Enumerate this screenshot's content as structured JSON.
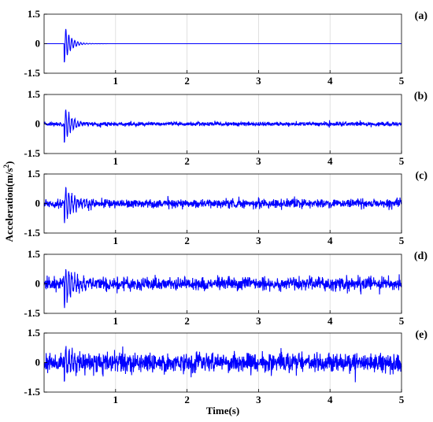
{
  "figure": {
    "ylabel_main": "Acceleration(m/s",
    "ylabel_sup": "2",
    "ylabel_close": ")",
    "xlabel": "Time(s)"
  },
  "chart_data": [
    {
      "type": "line",
      "panel_label": "(a)",
      "xlim": [
        0,
        5
      ],
      "ylim": [
        -1.5,
        1.5
      ],
      "xticks": [
        1,
        2,
        3,
        4,
        5
      ],
      "yticks": [
        -1.5,
        0,
        1.5
      ],
      "xtick_labels": [
        "1",
        "2",
        "3",
        "4",
        "5"
      ],
      "ytick_labels": [
        "-1.5",
        "0",
        "1.5"
      ],
      "grid": "vertical",
      "line_color": "#0000ff",
      "signal": {
        "onset": 0.28,
        "amplitude": 1.0,
        "frequency": 24,
        "decay": 12,
        "noise": 0.0
      }
    },
    {
      "type": "line",
      "panel_label": "(b)",
      "xlim": [
        0,
        5
      ],
      "ylim": [
        -1.5,
        1.5
      ],
      "xticks": [
        1,
        2,
        3,
        4,
        5
      ],
      "yticks": [
        -1.5,
        0,
        1.5
      ],
      "xtick_labels": [
        "1",
        "2",
        "3",
        "4",
        "5"
      ],
      "ytick_labels": [
        "-1.5",
        "0",
        "1.5"
      ],
      "grid": "vertical",
      "line_color": "#0000ff",
      "signal": {
        "onset": 0.28,
        "amplitude": 1.0,
        "frequency": 24,
        "decay": 10,
        "noise": 0.05
      }
    },
    {
      "type": "line",
      "panel_label": "(c)",
      "xlim": [
        0,
        5
      ],
      "ylim": [
        -1.5,
        1.5
      ],
      "xticks": [
        1,
        2,
        3,
        4,
        5
      ],
      "yticks": [
        -1.5,
        0,
        1.5
      ],
      "xtick_labels": [
        "1",
        "2",
        "3",
        "4",
        "5"
      ],
      "ytick_labels": [
        "-1.5",
        "0",
        "1.5"
      ],
      "grid": "vertical",
      "line_color": "#0000ff",
      "signal": {
        "onset": 0.28,
        "amplitude": 1.0,
        "frequency": 24,
        "decay": 8,
        "noise": 0.11
      }
    },
    {
      "type": "line",
      "panel_label": "(d)",
      "xlim": [
        0,
        5
      ],
      "ylim": [
        -1.5,
        1.5
      ],
      "xticks": [
        1,
        2,
        3,
        4,
        5
      ],
      "yticks": [
        -1.5,
        0,
        1.5
      ],
      "xtick_labels": [
        "1",
        "2",
        "3",
        "4",
        "5"
      ],
      "ytick_labels": [
        "-1.5",
        "0",
        "1.5"
      ],
      "grid": "vertical",
      "line_color": "#0000ff",
      "signal": {
        "onset": 0.28,
        "amplitude": 1.0,
        "frequency": 24,
        "decay": 7,
        "noise": 0.17
      }
    },
    {
      "type": "line",
      "panel_label": "(e)",
      "xlim": [
        0,
        5
      ],
      "ylim": [
        -1.5,
        1.5
      ],
      "xticks": [
        1,
        2,
        3,
        4,
        5
      ],
      "yticks": [
        -1.5,
        0,
        1.5
      ],
      "xtick_labels": [
        "1",
        "2",
        "3",
        "4",
        "5"
      ],
      "ytick_labels": [
        "-1.5",
        "0",
        "1.5"
      ],
      "grid": "vertical",
      "line_color": "#0000ff",
      "signal": {
        "onset": 0.28,
        "amplitude": 0.8,
        "frequency": 24,
        "decay": 6,
        "noise": 0.24
      }
    }
  ]
}
